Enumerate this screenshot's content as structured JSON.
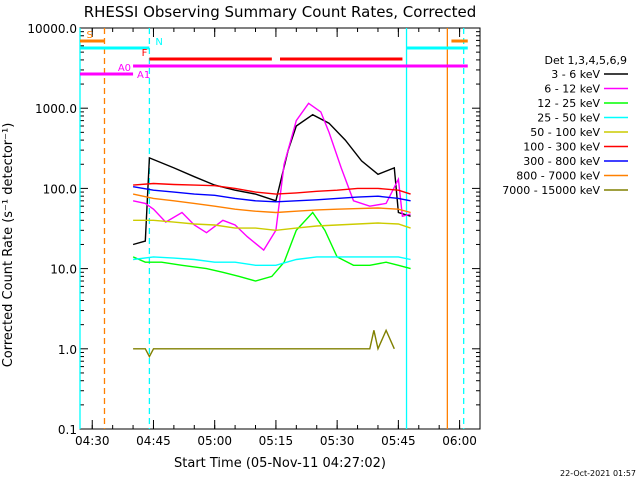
{
  "chart_data": {
    "type": "line",
    "title": "RHESSI Observing Summary Count Rates, Corrected",
    "xlabel": "Start Time (05-Nov-11 04:27:02)",
    "ylabel": "Corrected Count Rate (s⁻¹ detector⁻¹)",
    "y_scale": "log",
    "ylim": [
      0.1,
      10000
    ],
    "xlim": [
      "04:27",
      "06:05"
    ],
    "grid": false,
    "legend_position": "right",
    "x_tick_labels": [
      "04:30",
      "04:45",
      "05:00",
      "05:15",
      "05:30",
      "05:45",
      "06:00"
    ],
    "y_tick_labels": [
      "0.1",
      "1.0",
      "10.0",
      "100.0",
      "1000.0",
      "10000.0"
    ],
    "legend_title": "Det 1,3,4,5,6,9",
    "series": [
      {
        "name": "3 - 6 keV",
        "color": "#000000",
        "points": [
          [
            "04:40",
            20
          ],
          [
            "04:43",
            22
          ],
          [
            "04:44",
            240
          ],
          [
            "04:50",
            180
          ],
          [
            "04:55",
            140
          ],
          [
            "05:00",
            110
          ],
          [
            "05:05",
            95
          ],
          [
            "05:10",
            85
          ],
          [
            "05:15",
            70
          ],
          [
            "05:18",
            300
          ],
          [
            "05:20",
            600
          ],
          [
            "05:24",
            830
          ],
          [
            "05:28",
            650
          ],
          [
            "05:32",
            400
          ],
          [
            "05:36",
            220
          ],
          [
            "05:40",
            150
          ],
          [
            "05:44",
            180
          ],
          [
            "05:45",
            50
          ],
          [
            "05:48",
            45
          ]
        ]
      },
      {
        "name": "6 - 12 keV",
        "color": "#ff00ff",
        "points": [
          [
            "04:40",
            70
          ],
          [
            "04:43",
            65
          ],
          [
            "04:45",
            55
          ],
          [
            "04:48",
            38
          ],
          [
            "04:52",
            50
          ],
          [
            "04:55",
            35
          ],
          [
            "04:58",
            28
          ],
          [
            "05:02",
            40
          ],
          [
            "05:05",
            35
          ],
          [
            "05:08",
            25
          ],
          [
            "05:12",
            17
          ],
          [
            "05:15",
            30
          ],
          [
            "05:17",
            200
          ],
          [
            "05:20",
            700
          ],
          [
            "05:23",
            1150
          ],
          [
            "05:26",
            900
          ],
          [
            "05:28",
            500
          ],
          [
            "05:31",
            180
          ],
          [
            "05:34",
            70
          ],
          [
            "05:38",
            60
          ],
          [
            "05:42",
            65
          ],
          [
            "05:45",
            130
          ],
          [
            "05:46",
            45
          ],
          [
            "05:48",
            48
          ]
        ]
      },
      {
        "name": "12 - 25 keV",
        "color": "#00ff00",
        "points": [
          [
            "04:40",
            14
          ],
          [
            "04:43",
            12
          ],
          [
            "04:47",
            12
          ],
          [
            "04:52",
            11
          ],
          [
            "04:58",
            10
          ],
          [
            "05:02",
            9
          ],
          [
            "05:06",
            8
          ],
          [
            "05:10",
            7
          ],
          [
            "05:14",
            8
          ],
          [
            "05:17",
            12
          ],
          [
            "05:20",
            30
          ],
          [
            "05:24",
            50
          ],
          [
            "05:27",
            30
          ],
          [
            "05:30",
            14
          ],
          [
            "05:34",
            11
          ],
          [
            "05:38",
            11
          ],
          [
            "05:42",
            12
          ],
          [
            "05:45",
            11
          ],
          [
            "05:48",
            10
          ]
        ]
      },
      {
        "name": "25 - 50 keV",
        "color": "#00ffff",
        "points": [
          [
            "04:40",
            13
          ],
          [
            "04:45",
            14
          ],
          [
            "04:50",
            13.5
          ],
          [
            "04:55",
            13
          ],
          [
            "05:00",
            12
          ],
          [
            "05:05",
            12
          ],
          [
            "05:10",
            11
          ],
          [
            "05:15",
            11
          ],
          [
            "05:20",
            13
          ],
          [
            "05:25",
            14
          ],
          [
            "05:30",
            14
          ],
          [
            "05:35",
            14
          ],
          [
            "05:40",
            14
          ],
          [
            "05:45",
            14
          ],
          [
            "05:48",
            13
          ]
        ]
      },
      {
        "name": "50 - 100 keV",
        "color": "#cccc00",
        "points": [
          [
            "04:40",
            40
          ],
          [
            "04:45",
            40
          ],
          [
            "04:50",
            38
          ],
          [
            "04:55",
            36
          ],
          [
            "05:00",
            35
          ],
          [
            "05:05",
            32
          ],
          [
            "05:10",
            32
          ],
          [
            "05:15",
            30
          ],
          [
            "05:20",
            32
          ],
          [
            "05:25",
            34
          ],
          [
            "05:30",
            35
          ],
          [
            "05:35",
            36
          ],
          [
            "05:40",
            37
          ],
          [
            "05:45",
            36
          ],
          [
            "05:48",
            32
          ]
        ]
      },
      {
        "name": "100 - 300 keV",
        "color": "#ff0000",
        "points": [
          [
            "04:40",
            110
          ],
          [
            "04:45",
            115
          ],
          [
            "04:50",
            112
          ],
          [
            "04:55",
            110
          ],
          [
            "05:00",
            108
          ],
          [
            "05:05",
            100
          ],
          [
            "05:10",
            90
          ],
          [
            "05:15",
            85
          ],
          [
            "05:20",
            88
          ],
          [
            "05:25",
            92
          ],
          [
            "05:30",
            95
          ],
          [
            "05:35",
            100
          ],
          [
            "05:40",
            100
          ],
          [
            "05:45",
            95
          ],
          [
            "05:48",
            85
          ]
        ]
      },
      {
        "name": "300 - 800 keV",
        "color": "#0000ff",
        "points": [
          [
            "04:40",
            105
          ],
          [
            "04:45",
            95
          ],
          [
            "04:50",
            90
          ],
          [
            "04:55",
            85
          ],
          [
            "05:00",
            82
          ],
          [
            "05:05",
            75
          ],
          [
            "05:10",
            70
          ],
          [
            "05:15",
            68
          ],
          [
            "05:20",
            70
          ],
          [
            "05:25",
            72
          ],
          [
            "05:30",
            75
          ],
          [
            "05:35",
            78
          ],
          [
            "05:40",
            80
          ],
          [
            "05:45",
            75
          ],
          [
            "05:48",
            70
          ]
        ]
      },
      {
        "name": "800 - 7000 keV",
        "color": "#ff8000",
        "points": [
          [
            "04:40",
            85
          ],
          [
            "04:45",
            75
          ],
          [
            "04:50",
            70
          ],
          [
            "04:55",
            65
          ],
          [
            "05:00",
            60
          ],
          [
            "05:05",
            55
          ],
          [
            "05:10",
            52
          ],
          [
            "05:15",
            50
          ],
          [
            "05:20",
            52
          ],
          [
            "05:25",
            54
          ],
          [
            "05:30",
            55
          ],
          [
            "05:35",
            56
          ],
          [
            "05:40",
            57
          ],
          [
            "05:45",
            55
          ],
          [
            "05:48",
            50
          ]
        ]
      },
      {
        "name": "7000 - 15000 keV",
        "color": "#808000",
        "points": [
          [
            "04:40",
            1.0
          ],
          [
            "04:43",
            1.0
          ],
          [
            "04:44",
            0.8
          ],
          [
            "04:45",
            1.0
          ],
          [
            "05:00",
            1.0
          ],
          [
            "05:15",
            1.0
          ],
          [
            "05:30",
            1.0
          ],
          [
            "05:38",
            1.0
          ],
          [
            "05:39",
            1.7
          ],
          [
            "05:40",
            1.0
          ],
          [
            "05:42",
            1.7
          ],
          [
            "05:44",
            1.0
          ]
        ]
      }
    ],
    "vertical_markers": [
      {
        "time": "04:27",
        "color": "#00ffff",
        "style": "solid"
      },
      {
        "time": "04:33",
        "color": "#ff8000",
        "style": "dashed"
      },
      {
        "time": "04:44",
        "color": "#00ffff",
        "style": "dashed"
      },
      {
        "time": "05:47",
        "color": "#00ffff",
        "style": "solid"
      },
      {
        "time": "05:57",
        "color": "#ff8000",
        "style": "solid"
      },
      {
        "time": "06:01",
        "color": "#00ffff",
        "style": "dashed"
      }
    ],
    "flag_bars": [
      {
        "label": "S",
        "color": "#ff8000",
        "segments": [
          [
            "04:27",
            "04:33"
          ],
          [
            "05:58",
            "06:02"
          ]
        ]
      },
      {
        "label": "N",
        "color": "#00ffff",
        "segments": [
          [
            "04:27",
            "04:44"
          ],
          [
            "05:47",
            "06:02"
          ]
        ]
      },
      {
        "label": "F",
        "color": "#ff0000",
        "segments": [
          [
            "04:44",
            "05:14"
          ],
          [
            "05:16",
            "05:46"
          ]
        ]
      },
      {
        "label": "A0",
        "color": "#ff00ff",
        "segments": [
          [
            "04:27",
            "04:40"
          ]
        ]
      },
      {
        "label": "A1",
        "color": "#ff00ff",
        "segments": [
          [
            "04:40",
            "06:02"
          ]
        ]
      }
    ]
  },
  "footer_date": "22-Oct-2021 01:57"
}
